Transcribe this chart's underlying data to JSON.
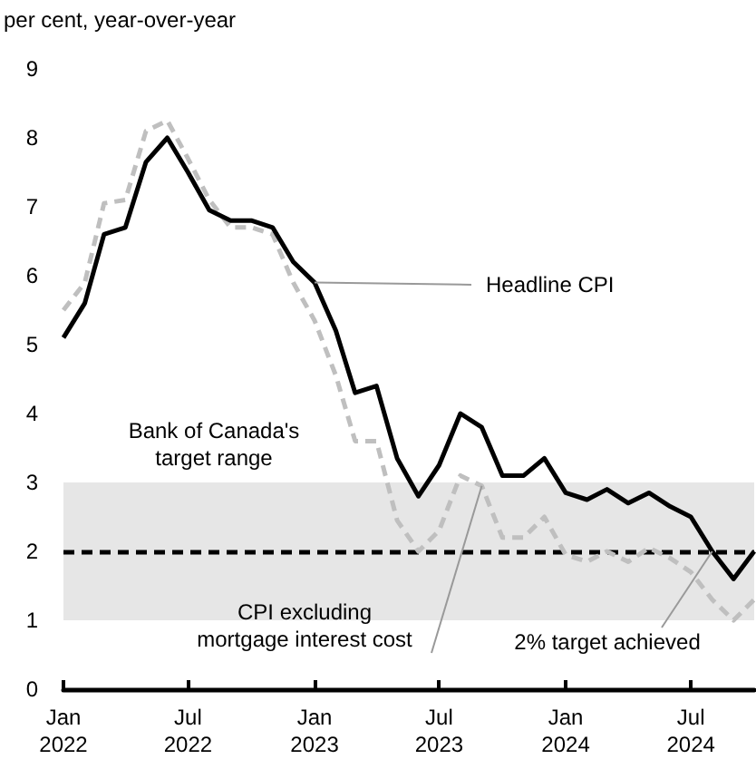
{
  "chart_data": {
    "type": "line",
    "ylabel": "per cent, year-over-year",
    "x": [
      "2022-01",
      "2022-02",
      "2022-03",
      "2022-04",
      "2022-05",
      "2022-06",
      "2022-07",
      "2022-08",
      "2022-09",
      "2022-10",
      "2022-11",
      "2022-12",
      "2023-01",
      "2023-02",
      "2023-03",
      "2023-04",
      "2023-05",
      "2023-06",
      "2023-07",
      "2023-08",
      "2023-09",
      "2023-10",
      "2023-11",
      "2023-12",
      "2024-01",
      "2024-02",
      "2024-03",
      "2024-04",
      "2024-05",
      "2024-06",
      "2024-07",
      "2024-08",
      "2024-09",
      "2024-10"
    ],
    "series": [
      {
        "color": "#bfbfbf",
        "line_style": "dashed",
        "values": [
          5.5,
          5.9,
          7.05,
          7.1,
          8.1,
          8.25,
          7.7,
          7.1,
          6.7,
          6.7,
          6.6,
          5.9,
          5.35,
          4.55,
          3.6,
          3.6,
          2.45,
          2.0,
          2.3,
          3.1,
          2.95,
          2.2,
          2.2,
          2.5,
          1.95,
          1.85,
          2.0,
          1.85,
          2.05,
          1.9,
          1.7,
          1.3,
          1.0,
          1.3
        ]
      },
      {
        "color": "#000000",
        "line_style": "solid",
        "values": [
          5.1,
          5.6,
          6.6,
          6.7,
          7.65,
          8.0,
          7.5,
          6.95,
          6.8,
          6.8,
          6.7,
          6.2,
          5.9,
          5.2,
          4.3,
          4.4,
          3.35,
          2.8,
          3.25,
          4.0,
          3.8,
          3.1,
          3.1,
          3.35,
          2.85,
          2.75,
          2.9,
          2.7,
          2.85,
          2.65,
          2.5,
          2.0,
          1.6,
          2.0
        ]
      }
    ],
    "xlim": [
      "2022-01",
      "2024-10"
    ],
    "xticks": [
      {
        "value": "2022-01",
        "label": "Jan\n2022"
      },
      {
        "value": "2022-07",
        "label": "Jul\n2022"
      },
      {
        "value": "2023-01",
        "label": "Jan\n2023"
      },
      {
        "value": "2023-07",
        "label": "Jul\n2023"
      },
      {
        "value": "2024-01",
        "label": "Jan\n2024"
      },
      {
        "value": "2024-07",
        "label": "Jul\n2024"
      }
    ],
    "ylim": [
      0,
      9
    ],
    "yticks": [
      0,
      1,
      2,
      3,
      4,
      5,
      6,
      7,
      8,
      9
    ],
    "bands": [
      {
        "axis": "y",
        "from": 1,
        "to": 3,
        "label": "Bank of Canada's\ntarget range",
        "color": "#e6e6e6"
      }
    ],
    "ref_lines": [
      {
        "axis": "y",
        "value": 2,
        "color": "#000000",
        "line_style": "dashed"
      }
    ],
    "annotations": [
      {
        "text": "Headline CPI",
        "x": "2023-01",
        "y": 5.9
      },
      {
        "text": "CPI excluding\nmortgage interest cost",
        "x": "2023-09",
        "y": 2.95
      },
      {
        "text": "2% target achieved",
        "x": "2024-08",
        "y": 2.0
      }
    ],
    "grid": false,
    "marker": "none"
  }
}
